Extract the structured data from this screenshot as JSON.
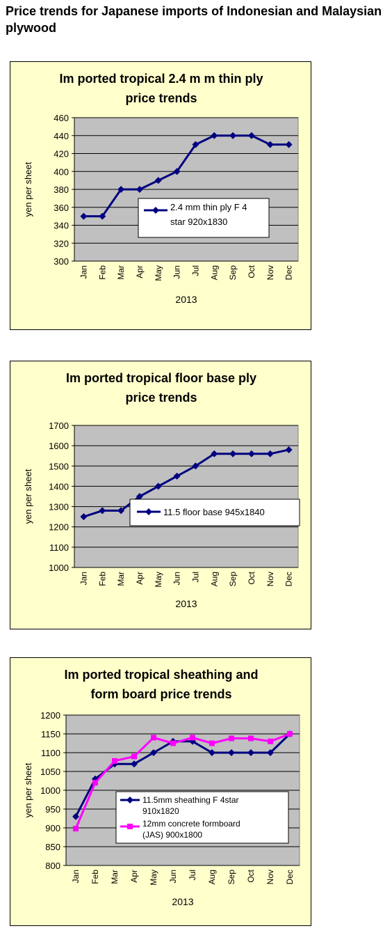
{
  "page": {
    "title": "Price trends for Japanese imports of Indonesian and Malaysian plywood"
  },
  "chart_data": [
    {
      "type": "line",
      "title": [
        "Im ported tropical 2.4 m m thin ply",
        "price trends"
      ],
      "xlabel": "2013",
      "ylabel": "yen per sheet",
      "categories": [
        "Jan",
        "Feb",
        "Mar",
        "Apr",
        "May",
        "Jun",
        "Jul",
        "Aug",
        "Sep",
        "Oct",
        "Nov",
        "Dec"
      ],
      "ylim": [
        300,
        460
      ],
      "yticks": [
        "300",
        "320",
        "340",
        "360",
        "380",
        "400",
        "420",
        "440",
        "460"
      ],
      "grid": true,
      "legend": "center-right",
      "series": [
        {
          "name": [
            "2.4 mm thin ply F 4",
            "star 920x1830"
          ],
          "color": "#000080",
          "marker": "diamond",
          "values": [
            350,
            350,
            380,
            380,
            390,
            400,
            430,
            440,
            440,
            440,
            430,
            430
          ]
        }
      ]
    },
    {
      "type": "line",
      "title": [
        "Im ported tropical floor base ply",
        "price trends"
      ],
      "xlabel": "2013",
      "ylabel": "yen per sheet",
      "categories": [
        "Jan",
        "Feb",
        "Mar",
        "Apr",
        "May",
        "Jun",
        "Jul",
        "Aug",
        "Sep",
        "Oct",
        "Nov",
        "Dec"
      ],
      "ylim": [
        1000,
        1700
      ],
      "yticks": [
        "1000",
        "1100",
        "1200",
        "1300",
        "1400",
        "1500",
        "1600",
        "1700"
      ],
      "grid": true,
      "legend": "center-right",
      "series": [
        {
          "name": [
            "11.5 floor base 945x1840"
          ],
          "color": "#000080",
          "marker": "diamond",
          "values": [
            1250,
            1280,
            1280,
            1350,
            1400,
            1450,
            1500,
            1560,
            1560,
            1560,
            1560,
            1580
          ]
        }
      ]
    },
    {
      "type": "line",
      "title": [
        "Im ported tropical sheathing and",
        "form board price trends"
      ],
      "xlabel": "2013",
      "ylabel": "yen per sheet",
      "categories": [
        "Jan",
        "Feb",
        "Mar",
        "Apr",
        "May",
        "Jun",
        "Jul",
        "Aug",
        "Sep",
        "Oct",
        "Nov",
        "Dec"
      ],
      "ylim": [
        800,
        1200
      ],
      "yticks": [
        "800",
        "850",
        "900",
        "950",
        "1000",
        "1050",
        "1100",
        "1150",
        "1200"
      ],
      "grid": true,
      "legend": "lower-right",
      "series": [
        {
          "name": [
            "11.5mm sheathing F 4star",
            "910x1820"
          ],
          "color": "#000080",
          "marker": "diamond",
          "values": [
            930,
            1030,
            1070,
            1070,
            1100,
            1130,
            1130,
            1100,
            1100,
            1100,
            1100,
            1150
          ]
        },
        {
          "name": [
            "12mm concrete formboard",
            "(JAS) 900x1800"
          ],
          "color": "#ff00ff",
          "marker": "square",
          "values": [
            898,
            1020,
            1078,
            1090,
            1140,
            1125,
            1140,
            1125,
            1138,
            1138,
            1130,
            1150
          ]
        }
      ]
    }
  ]
}
